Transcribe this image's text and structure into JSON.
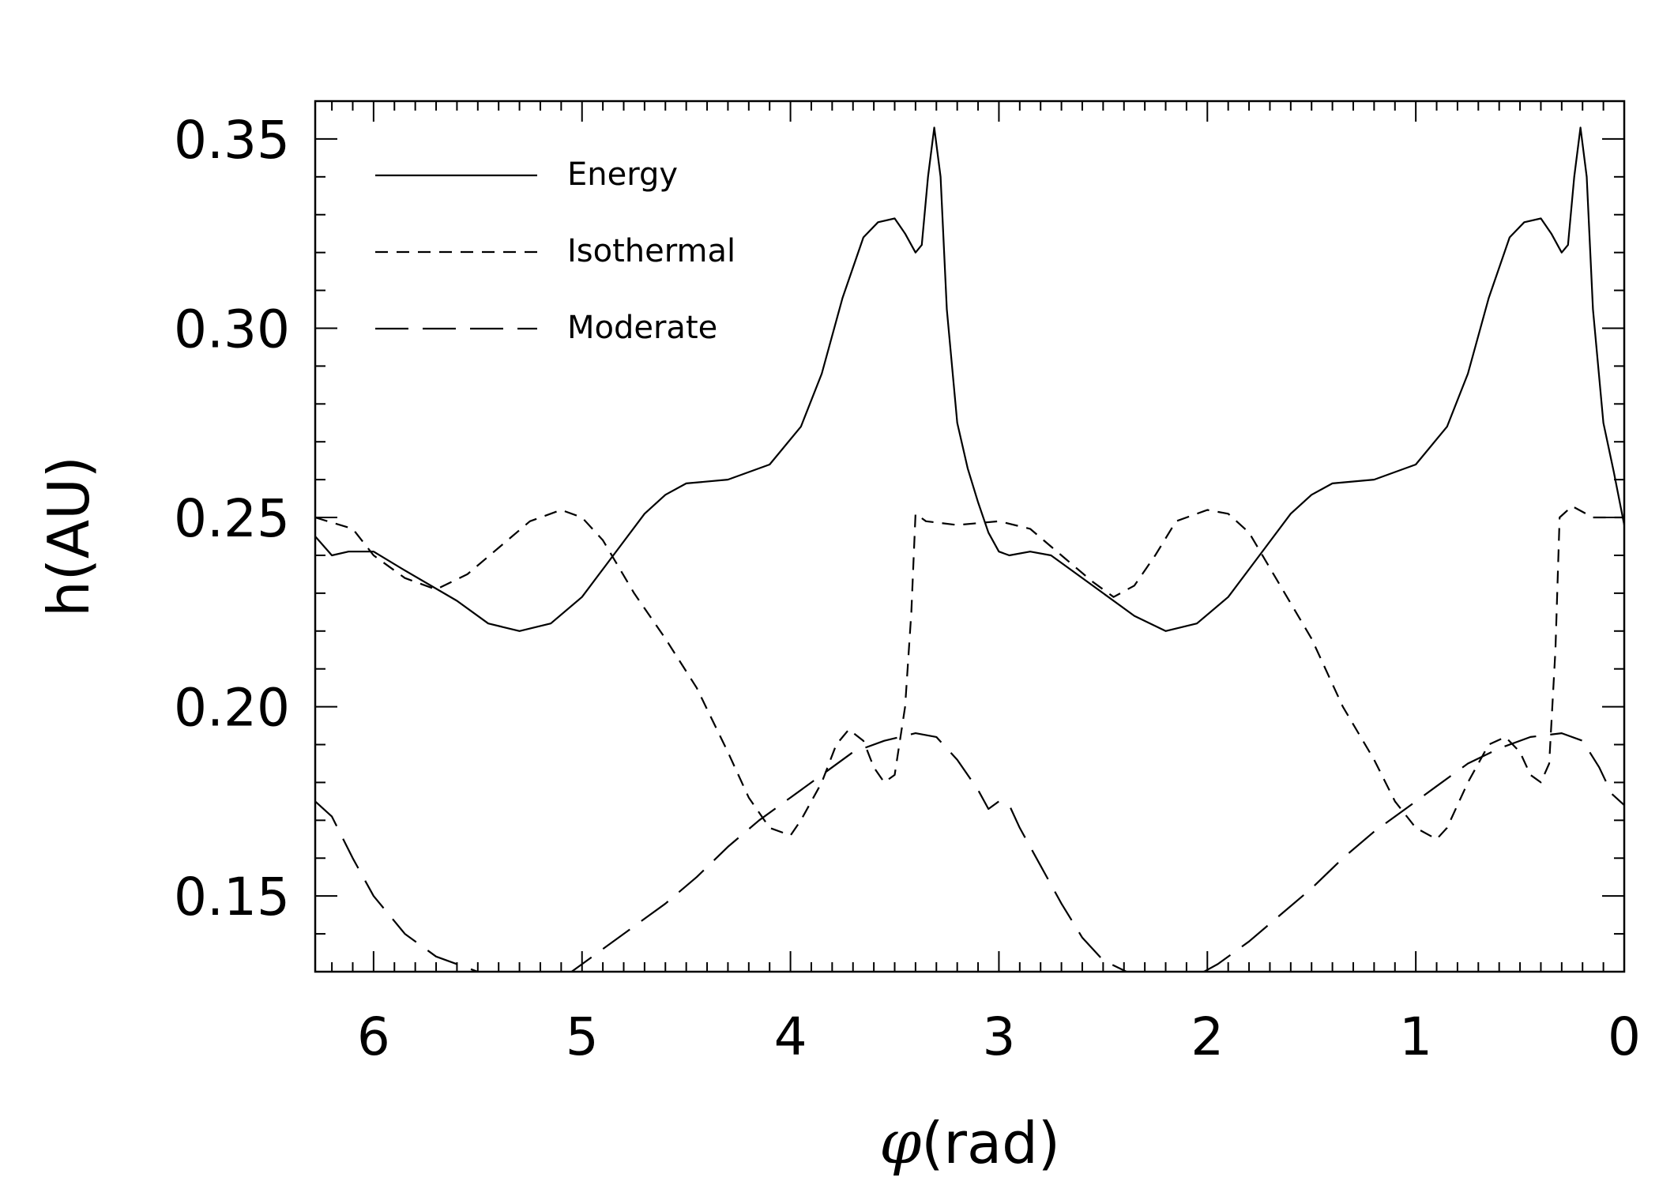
{
  "chart_data": {
    "type": "line",
    "xlabel_symbol": "φ",
    "xlabel_unit": "(rad)",
    "ylabel": "h(AU)",
    "xlim": [
      6.28,
      0
    ],
    "ylim": [
      0.13,
      0.36
    ],
    "x_ticks": [
      6,
      5,
      4,
      3,
      2,
      1,
      0
    ],
    "x_tick_labels": [
      "6",
      "5",
      "4",
      "3",
      "2",
      "1",
      "0"
    ],
    "y_ticks": [
      0.15,
      0.2,
      0.25,
      0.3,
      0.35
    ],
    "y_tick_labels": [
      "0.15",
      "0.20",
      "0.25",
      "0.30",
      "0.35"
    ],
    "legend_position": "top-left",
    "grid": false,
    "series": [
      {
        "name": "Energy",
        "style": "solid",
        "points": [
          [
            6.28,
            0.245
          ],
          [
            6.2,
            0.24
          ],
          [
            6.12,
            0.241
          ],
          [
            6.0,
            0.241
          ],
          [
            5.85,
            0.236
          ],
          [
            5.6,
            0.228
          ],
          [
            5.45,
            0.222
          ],
          [
            5.3,
            0.22
          ],
          [
            5.15,
            0.222
          ],
          [
            5.0,
            0.229
          ],
          [
            4.85,
            0.24
          ],
          [
            4.7,
            0.251
          ],
          [
            4.6,
            0.256
          ],
          [
            4.5,
            0.259
          ],
          [
            4.3,
            0.26
          ],
          [
            4.1,
            0.264
          ],
          [
            3.95,
            0.274
          ],
          [
            3.85,
            0.288
          ],
          [
            3.75,
            0.308
          ],
          [
            3.65,
            0.324
          ],
          [
            3.58,
            0.328
          ],
          [
            3.5,
            0.329
          ],
          [
            3.45,
            0.325
          ],
          [
            3.4,
            0.32
          ],
          [
            3.37,
            0.322
          ],
          [
            3.34,
            0.34
          ],
          [
            3.31,
            0.353
          ],
          [
            3.28,
            0.34
          ],
          [
            3.25,
            0.305
          ],
          [
            3.2,
            0.275
          ],
          [
            3.15,
            0.263
          ],
          [
            3.1,
            0.254
          ],
          [
            3.05,
            0.246
          ],
          [
            3.0,
            0.241
          ],
          [
            2.95,
            0.24
          ],
          [
            2.85,
            0.241
          ],
          [
            2.75,
            0.24
          ],
          [
            2.65,
            0.236
          ],
          [
            2.5,
            0.23
          ],
          [
            2.35,
            0.224
          ],
          [
            2.2,
            0.22
          ],
          [
            2.05,
            0.222
          ],
          [
            1.9,
            0.229
          ],
          [
            1.75,
            0.24
          ],
          [
            1.6,
            0.251
          ],
          [
            1.5,
            0.256
          ],
          [
            1.4,
            0.259
          ],
          [
            1.2,
            0.26
          ],
          [
            1.0,
            0.264
          ],
          [
            0.85,
            0.274
          ],
          [
            0.75,
            0.288
          ],
          [
            0.65,
            0.308
          ],
          [
            0.55,
            0.324
          ],
          [
            0.48,
            0.328
          ],
          [
            0.4,
            0.329
          ],
          [
            0.35,
            0.325
          ],
          [
            0.3,
            0.32
          ],
          [
            0.27,
            0.322
          ],
          [
            0.24,
            0.34
          ],
          [
            0.21,
            0.353
          ],
          [
            0.18,
            0.34
          ],
          [
            0.15,
            0.305
          ],
          [
            0.1,
            0.275
          ],
          [
            0.05,
            0.262
          ],
          [
            0.0,
            0.248
          ]
        ]
      },
      {
        "name": "Isothermal",
        "style": "short-dash",
        "points": [
          [
            6.28,
            0.25
          ],
          [
            6.1,
            0.247
          ],
          [
            6.0,
            0.24
          ],
          [
            5.85,
            0.234
          ],
          [
            5.7,
            0.231
          ],
          [
            5.55,
            0.235
          ],
          [
            5.4,
            0.242
          ],
          [
            5.25,
            0.249
          ],
          [
            5.1,
            0.252
          ],
          [
            5.0,
            0.25
          ],
          [
            4.9,
            0.244
          ],
          [
            4.75,
            0.23
          ],
          [
            4.6,
            0.218
          ],
          [
            4.45,
            0.205
          ],
          [
            4.3,
            0.188
          ],
          [
            4.2,
            0.176
          ],
          [
            4.1,
            0.168
          ],
          [
            4.0,
            0.166
          ],
          [
            3.95,
            0.17
          ],
          [
            3.85,
            0.18
          ],
          [
            3.78,
            0.19
          ],
          [
            3.72,
            0.194
          ],
          [
            3.65,
            0.191
          ],
          [
            3.6,
            0.184
          ],
          [
            3.55,
            0.18
          ],
          [
            3.5,
            0.182
          ],
          [
            3.45,
            0.2
          ],
          [
            3.42,
            0.225
          ],
          [
            3.4,
            0.251
          ],
          [
            3.35,
            0.249
          ],
          [
            3.2,
            0.248
          ],
          [
            3.0,
            0.249
          ],
          [
            2.85,
            0.247
          ],
          [
            2.7,
            0.24
          ],
          [
            2.55,
            0.233
          ],
          [
            2.45,
            0.229
          ],
          [
            2.35,
            0.232
          ],
          [
            2.25,
            0.24
          ],
          [
            2.15,
            0.249
          ],
          [
            2.0,
            0.252
          ],
          [
            1.9,
            0.251
          ],
          [
            1.8,
            0.246
          ],
          [
            1.65,
            0.232
          ],
          [
            1.5,
            0.218
          ],
          [
            1.35,
            0.2
          ],
          [
            1.2,
            0.186
          ],
          [
            1.1,
            0.175
          ],
          [
            1.0,
            0.168
          ],
          [
            0.9,
            0.165
          ],
          [
            0.85,
            0.168
          ],
          [
            0.75,
            0.18
          ],
          [
            0.65,
            0.19
          ],
          [
            0.57,
            0.192
          ],
          [
            0.5,
            0.188
          ],
          [
            0.45,
            0.182
          ],
          [
            0.4,
            0.18
          ],
          [
            0.36,
            0.185
          ],
          [
            0.33,
            0.215
          ],
          [
            0.31,
            0.25
          ],
          [
            0.25,
            0.253
          ],
          [
            0.15,
            0.25
          ],
          [
            0.0,
            0.25
          ]
        ]
      },
      {
        "name": "Moderate",
        "style": "long-dash",
        "points": [
          [
            6.28,
            0.175
          ],
          [
            6.2,
            0.171
          ],
          [
            6.1,
            0.16
          ],
          [
            6.0,
            0.15
          ],
          [
            5.85,
            0.14
          ],
          [
            5.7,
            0.134
          ],
          [
            5.5,
            0.13
          ],
          [
            5.35,
            0.128
          ],
          [
            5.15,
            0.128
          ],
          [
            5.05,
            0.13
          ],
          [
            4.9,
            0.136
          ],
          [
            4.75,
            0.142
          ],
          [
            4.6,
            0.148
          ],
          [
            4.45,
            0.155
          ],
          [
            4.3,
            0.163
          ],
          [
            4.15,
            0.17
          ],
          [
            4.0,
            0.176
          ],
          [
            3.85,
            0.182
          ],
          [
            3.7,
            0.188
          ],
          [
            3.55,
            0.191
          ],
          [
            3.4,
            0.193
          ],
          [
            3.3,
            0.192
          ],
          [
            3.2,
            0.186
          ],
          [
            3.1,
            0.178
          ],
          [
            3.05,
            0.173
          ],
          [
            3.0,
            0.175
          ],
          [
            2.95,
            0.174
          ],
          [
            2.9,
            0.168
          ],
          [
            2.8,
            0.158
          ],
          [
            2.7,
            0.148
          ],
          [
            2.6,
            0.139
          ],
          [
            2.5,
            0.133
          ],
          [
            2.35,
            0.129
          ],
          [
            2.2,
            0.127
          ],
          [
            2.05,
            0.129
          ],
          [
            1.95,
            0.132
          ],
          [
            1.8,
            0.138
          ],
          [
            1.65,
            0.145
          ],
          [
            1.5,
            0.152
          ],
          [
            1.35,
            0.16
          ],
          [
            1.2,
            0.167
          ],
          [
            1.05,
            0.173
          ],
          [
            0.9,
            0.179
          ],
          [
            0.75,
            0.185
          ],
          [
            0.6,
            0.189
          ],
          [
            0.45,
            0.192
          ],
          [
            0.3,
            0.193
          ],
          [
            0.2,
            0.191
          ],
          [
            0.12,
            0.184
          ],
          [
            0.06,
            0.177
          ],
          [
            0.0,
            0.174
          ]
        ]
      }
    ]
  }
}
